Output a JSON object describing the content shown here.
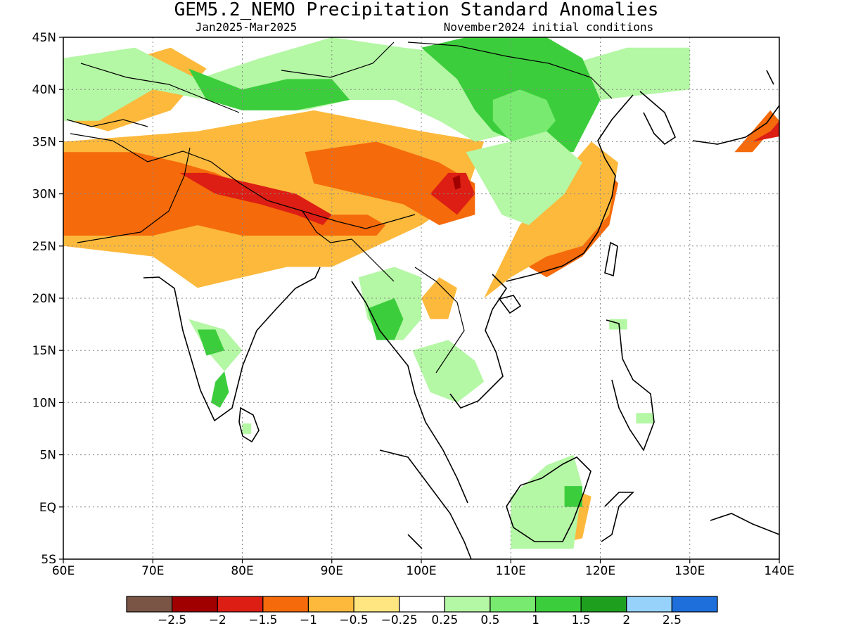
{
  "title": "GEM5.2_NEMO Precipitation Standard Anomalies",
  "subtitle_left": "Jan2025-Mar2025",
  "subtitle_right": "November2024 initial conditions",
  "map": {
    "lon_range": [
      60,
      140
    ],
    "lat_range": [
      -5,
      45
    ],
    "lon_ticks": [
      "60E",
      "70E",
      "80E",
      "90E",
      "100E",
      "110E",
      "120E",
      "130E",
      "140E"
    ],
    "lat_ticks": [
      "45N",
      "40N",
      "35N",
      "30N",
      "25N",
      "20N",
      "15N",
      "10N",
      "5N",
      "EQ",
      "5S"
    ],
    "grid": "dotted",
    "regions": [
      {
        "class": "yellow",
        "poly": [
          [
            60,
            35
          ],
          [
            75,
            36
          ],
          [
            88,
            38
          ],
          [
            100,
            36
          ],
          [
            107,
            35
          ],
          [
            105,
            30
          ],
          [
            100,
            27
          ],
          [
            95,
            25
          ],
          [
            90,
            23
          ],
          [
            85,
            23
          ],
          [
            80,
            22
          ],
          [
            75,
            21
          ],
          [
            70,
            24
          ],
          [
            60,
            25
          ]
        ]
      },
      {
        "class": "orange",
        "poly": [
          [
            60,
            34
          ],
          [
            68,
            34
          ],
          [
            73,
            33
          ],
          [
            77,
            32
          ],
          [
            82,
            30
          ],
          [
            86,
            29
          ],
          [
            90,
            28
          ],
          [
            94,
            28
          ],
          [
            96,
            27
          ],
          [
            95,
            26
          ],
          [
            90,
            26
          ],
          [
            85,
            26
          ],
          [
            80,
            26
          ],
          [
            75,
            27
          ],
          [
            70,
            26
          ],
          [
            60,
            26
          ]
        ]
      },
      {
        "class": "orange",
        "poly": [
          [
            87,
            34
          ],
          [
            95,
            35
          ],
          [
            102,
            33
          ],
          [
            106,
            31
          ],
          [
            106,
            28
          ],
          [
            102,
            27
          ],
          [
            98,
            29
          ],
          [
            93,
            30
          ],
          [
            88,
            31
          ]
        ]
      },
      {
        "class": "orange",
        "poly": [
          [
            110,
            24
          ],
          [
            114,
            28
          ],
          [
            117,
            31
          ],
          [
            120,
            33
          ],
          [
            122,
            31
          ],
          [
            121,
            27
          ],
          [
            118,
            24
          ],
          [
            114,
            22
          ]
        ]
      },
      {
        "class": "yellow",
        "poly": [
          [
            107,
            20
          ],
          [
            110,
            22
          ],
          [
            114,
            24
          ],
          [
            118,
            25
          ],
          [
            121,
            28
          ],
          [
            122,
            33
          ],
          [
            119,
            35
          ],
          [
            115,
            31
          ],
          [
            111,
            27
          ]
        ]
      },
      {
        "class": "red",
        "poly": [
          [
            73,
            32
          ],
          [
            77,
            30
          ],
          [
            82,
            29
          ],
          [
            86,
            28
          ],
          [
            89,
            27
          ],
          [
            90,
            28
          ],
          [
            86,
            30
          ],
          [
            81,
            31
          ],
          [
            76,
            32
          ]
        ]
      },
      {
        "class": "red",
        "poly": [
          [
            101,
            30
          ],
          [
            103,
            32
          ],
          [
            105,
            32
          ],
          [
            106,
            30
          ],
          [
            104,
            28
          ]
        ]
      },
      {
        "class": "darkred",
        "poly": [
          [
            103.5,
            31.5
          ],
          [
            104.3,
            31.8
          ],
          [
            104.4,
            30.6
          ],
          [
            103.8,
            30.4
          ]
        ]
      },
      {
        "class": "yellow",
        "poly": [
          [
            61,
            37
          ],
          [
            66,
            38
          ],
          [
            68,
            43
          ],
          [
            72,
            44
          ],
          [
            76,
            42
          ],
          [
            72,
            38
          ],
          [
            65,
            36
          ]
        ]
      },
      {
        "class": "yellow",
        "poly": [
          [
            96,
            42
          ],
          [
            104,
            43
          ],
          [
            108,
            41
          ],
          [
            104,
            39
          ],
          [
            99,
            40
          ]
        ]
      },
      {
        "class": "yellow",
        "poly": [
          [
            113,
            -4
          ],
          [
            118,
            -3
          ],
          [
            119,
            1
          ],
          [
            116,
            2
          ],
          [
            113,
            1
          ]
        ]
      },
      {
        "class": "yellow",
        "poly": [
          [
            100,
            20
          ],
          [
            102,
            22
          ],
          [
            104,
            21
          ],
          [
            103,
            18
          ],
          [
            101,
            18
          ]
        ]
      },
      {
        "class": "orange",
        "poly": [
          [
            135,
            34
          ],
          [
            138,
            37
          ],
          [
            139,
            38
          ],
          [
            140,
            37
          ],
          [
            137,
            34
          ]
        ]
      },
      {
        "class": "red",
        "poly": [
          [
            137,
            35
          ],
          [
            139,
            36
          ],
          [
            140,
            37
          ],
          [
            140,
            35.5
          ]
        ]
      },
      {
        "class": "lightgreen",
        "poly": [
          [
            60,
            43
          ],
          [
            68,
            44
          ],
          [
            75,
            41
          ],
          [
            82,
            43
          ],
          [
            90,
            45
          ],
          [
            98,
            44
          ],
          [
            108,
            43
          ],
          [
            115,
            42
          ],
          [
            123,
            44
          ],
          [
            130,
            44
          ],
          [
            130,
            40
          ],
          [
            120,
            39
          ],
          [
            117,
            36
          ],
          [
            115,
            34
          ],
          [
            111,
            36
          ],
          [
            106,
            35
          ],
          [
            102,
            37
          ],
          [
            97,
            39
          ],
          [
            92,
            39
          ],
          [
            87,
            38
          ],
          [
            82,
            38
          ],
          [
            76,
            39
          ],
          [
            70,
            40
          ],
          [
            64,
            37
          ],
          [
            60,
            37
          ]
        ]
      },
      {
        "class": "green",
        "poly": [
          [
            74,
            42
          ],
          [
            80,
            40
          ],
          [
            85,
            41
          ],
          [
            90,
            41
          ],
          [
            92,
            39
          ],
          [
            86,
            38
          ],
          [
            80,
            38
          ],
          [
            76,
            39
          ]
        ]
      },
      {
        "class": "green",
        "poly": [
          [
            100,
            44
          ],
          [
            105,
            45
          ],
          [
            114,
            45
          ],
          [
            118,
            43
          ],
          [
            120,
            39
          ],
          [
            117,
            34
          ],
          [
            113,
            34
          ],
          [
            108,
            36
          ],
          [
            106,
            38
          ],
          [
            104,
            41
          ]
        ]
      },
      {
        "class": "midgreen",
        "poly": [
          [
            108,
            39
          ],
          [
            111,
            40
          ],
          [
            114,
            39
          ],
          [
            115,
            37
          ],
          [
            113,
            35
          ],
          [
            110,
            35
          ],
          [
            108,
            37
          ]
        ]
      },
      {
        "class": "lightgreen",
        "poly": [
          [
            105,
            34
          ],
          [
            110,
            35
          ],
          [
            114,
            36
          ],
          [
            118,
            33
          ],
          [
            116,
            30
          ],
          [
            112,
            27
          ],
          [
            109,
            28
          ],
          [
            107,
            31
          ]
        ]
      },
      {
        "class": "lightgreen",
        "poly": [
          [
            74,
            18
          ],
          [
            78,
            17
          ],
          [
            80,
            15
          ],
          [
            78,
            13
          ],
          [
            76,
            15
          ]
        ]
      },
      {
        "class": "green",
        "poly": [
          [
            75,
            17
          ],
          [
            77,
            17
          ],
          [
            78,
            15
          ],
          [
            76,
            14.5
          ]
        ]
      },
      {
        "class": "green",
        "poly": [
          [
            77,
            12
          ],
          [
            78,
            13
          ],
          [
            78.5,
            11
          ],
          [
            77.5,
            9.5
          ],
          [
            76.5,
            10
          ]
        ]
      },
      {
        "class": "lightgreen",
        "poly": [
          [
            93,
            22
          ],
          [
            97,
            23
          ],
          [
            100,
            22
          ],
          [
            100,
            18
          ],
          [
            98,
            16
          ],
          [
            96,
            16
          ],
          [
            94,
            18
          ]
        ]
      },
      {
        "class": "green",
        "poly": [
          [
            94,
            19
          ],
          [
            97,
            20
          ],
          [
            98,
            18
          ],
          [
            97,
            16
          ],
          [
            95,
            16
          ]
        ]
      },
      {
        "class": "lightgreen",
        "poly": [
          [
            99,
            15
          ],
          [
            103,
            16
          ],
          [
            106,
            14
          ],
          [
            107,
            12
          ],
          [
            104,
            10
          ],
          [
            101,
            11
          ]
        ]
      },
      {
        "class": "lightgreen",
        "poly": [
          [
            110,
            -4
          ],
          [
            117,
            -4
          ],
          [
            118,
            2
          ],
          [
            117,
            5
          ],
          [
            114,
            4
          ],
          [
            110,
            1
          ]
        ]
      },
      {
        "class": "green",
        "poly": [
          [
            116,
            0
          ],
          [
            118,
            0
          ],
          [
            118,
            2
          ],
          [
            116,
            2
          ]
        ]
      },
      {
        "class": "lightgreen",
        "poly": [
          [
            121,
            17
          ],
          [
            123,
            17
          ],
          [
            123,
            18
          ],
          [
            121,
            18
          ]
        ]
      },
      {
        "class": "lightgreen",
        "poly": [
          [
            124,
            8
          ],
          [
            126,
            8
          ],
          [
            126,
            9
          ],
          [
            124,
            9
          ]
        ]
      },
      {
        "class": "lightgreen",
        "poly": [
          [
            80,
            7
          ],
          [
            81,
            7
          ],
          [
            81,
            8
          ],
          [
            80,
            8
          ]
        ]
      }
    ]
  },
  "colors": {
    "darkbrown": "#7a5545",
    "darkred": "#a00000",
    "red": "#dc1e14",
    "orange": "#f56a0a",
    "yellow": "#fcb93c",
    "lightyellow": "#ffe680",
    "white": "#ffffff",
    "lightgreen": "#b4f7a4",
    "midgreen": "#78ea70",
    "green": "#3ccd3c",
    "darkgreen": "#1ea01e",
    "lightblue": "#96d2fa",
    "blue": "#1e6edc"
  },
  "colorbar": {
    "swatches": [
      "#7a5545",
      "#a00000",
      "#dc1e14",
      "#f56a0a",
      "#fcb93c",
      "#ffe680",
      "#ffffff",
      "#b4f7a4",
      "#78ea70",
      "#3ccd3c",
      "#1ea01e",
      "#96d2fa",
      "#1e6edc"
    ],
    "labels": [
      "−2.5",
      "−2",
      "−1.5",
      "−1",
      "−0.5",
      "−0.25",
      "0.25",
      "0.5",
      "1",
      "1.5",
      "2",
      "2.5"
    ]
  }
}
